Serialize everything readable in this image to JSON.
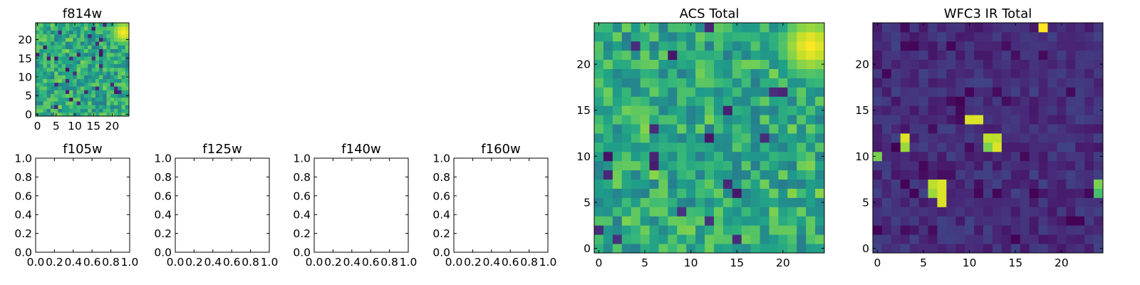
{
  "chart_data": [
    {
      "type": "heatmap",
      "title": "f814w",
      "colormap": "viridis",
      "grid_size": 25,
      "xlim": [
        -0.5,
        24.5
      ],
      "ylim": [
        -0.5,
        24.5
      ],
      "xticks": [
        0,
        5,
        10,
        15,
        20
      ],
      "yticks": [
        0,
        5,
        10,
        15,
        20
      ],
      "hotspots": [
        {
          "x": 23,
          "y": 22,
          "value": 1.0,
          "spread": 2.2
        }
      ]
    },
    {
      "type": "empty",
      "title": "f105w",
      "xlim": [
        0,
        1
      ],
      "ylim": [
        0,
        1
      ],
      "xticks": [
        "0.0",
        "0.2",
        "0.4",
        "0.6",
        "0.8",
        "1.0"
      ],
      "yticks": [
        "0.0",
        "0.2",
        "0.4",
        "0.6",
        "0.8",
        "1.0"
      ]
    },
    {
      "type": "empty",
      "title": "f125w",
      "xlim": [
        0,
        1
      ],
      "ylim": [
        0,
        1
      ],
      "xticks": [
        "0.0",
        "0.2",
        "0.4",
        "0.6",
        "0.8",
        "1.0"
      ],
      "yticks": [
        "0.0",
        "0.2",
        "0.4",
        "0.6",
        "0.8",
        "1.0"
      ]
    },
    {
      "type": "empty",
      "title": "f140w",
      "xlim": [
        0,
        1
      ],
      "ylim": [
        0,
        1
      ],
      "xticks": [
        "0.0",
        "0.2",
        "0.4",
        "0.6",
        "0.8",
        "1.0"
      ],
      "yticks": [
        "0.0",
        "0.2",
        "0.4",
        "0.6",
        "0.8",
        "1.0"
      ]
    },
    {
      "type": "empty",
      "title": "f160w",
      "xlim": [
        0,
        1
      ],
      "ylim": [
        0,
        1
      ],
      "xticks": [
        "0.0",
        "0.2",
        "0.4",
        "0.6",
        "0.8",
        "1.0"
      ],
      "yticks": [
        "0.0",
        "0.2",
        "0.4",
        "0.6",
        "0.8",
        "1.0"
      ]
    },
    {
      "type": "heatmap",
      "title": "ACS Total",
      "colormap": "viridis",
      "grid_size": 25,
      "xlim": [
        -0.5,
        24.5
      ],
      "ylim": [
        -0.5,
        24.5
      ],
      "xticks": [
        0,
        5,
        10,
        15,
        20
      ],
      "yticks": [
        0,
        5,
        10,
        15,
        20
      ],
      "hotspots": [
        {
          "x": 23,
          "y": 22,
          "value": 1.0,
          "spread": 2.2
        }
      ]
    },
    {
      "type": "heatmap",
      "title": "WFC3 IR Total",
      "colormap": "viridis",
      "grid_size": 25,
      "xlim": [
        -0.5,
        24.5
      ],
      "ylim": [
        -0.5,
        24.5
      ],
      "xticks": [
        0,
        5,
        10,
        15,
        20
      ],
      "yticks": [
        0,
        5,
        10,
        15,
        20
      ],
      "hotspots": [
        {
          "x": 18,
          "y": 24,
          "value": 1.0
        },
        {
          "x": 10,
          "y": 14,
          "value": 0.95
        },
        {
          "x": 11,
          "y": 14,
          "value": 0.95
        },
        {
          "x": 3,
          "y": 12,
          "value": 0.95
        },
        {
          "x": 3,
          "y": 11,
          "value": 0.85
        },
        {
          "x": 12,
          "y": 12,
          "value": 0.9
        },
        {
          "x": 13,
          "y": 12,
          "value": 0.9
        },
        {
          "x": 12,
          "y": 11,
          "value": 0.8
        },
        {
          "x": 13,
          "y": 11,
          "value": 0.95
        },
        {
          "x": 0,
          "y": 10,
          "value": 0.8
        },
        {
          "x": 6,
          "y": 7,
          "value": 0.9
        },
        {
          "x": 7,
          "y": 7,
          "value": 0.95
        },
        {
          "x": 6,
          "y": 6,
          "value": 0.85
        },
        {
          "x": 7,
          "y": 6,
          "value": 0.95
        },
        {
          "x": 7,
          "y": 5,
          "value": 0.95
        },
        {
          "x": 24,
          "y": 7,
          "value": 0.8
        },
        {
          "x": 24,
          "y": 6,
          "value": 0.7
        }
      ]
    }
  ]
}
